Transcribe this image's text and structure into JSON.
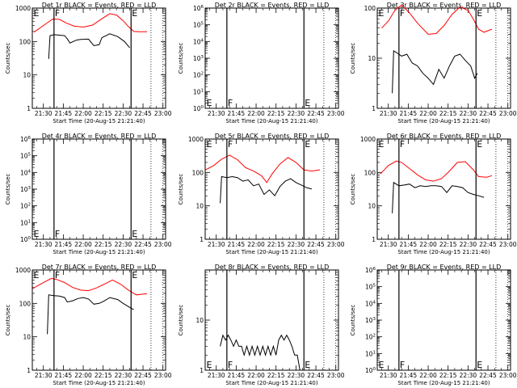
{
  "figure": {
    "background": "#ffffff",
    "events_color": "#000000",
    "lld_color": "#ff0000",
    "x_tick_labels": [
      "21:30",
      "21:45",
      "22:00",
      "22:15",
      "22:30",
      "22:45",
      "23:00"
    ],
    "x_label": "Start Time (20-Aug-15 21:21:40)",
    "y_label": "Counts/sec",
    "start_time": "21:21:40"
  },
  "chart_data": [
    {
      "type": "line",
      "title": "Det 1r BLACK = Events, RED = LLD",
      "xlim": [
        "21:21:40",
        "23:02:00"
      ],
      "ylim": [
        1,
        1000
      ],
      "yscale": "log",
      "y_ticks": [
        "1",
        "10",
        "100",
        "1000"
      ],
      "markers": [
        {
          "label": "E",
          "t": "21:22"
        },
        {
          "label": "F",
          "t": "21:38"
        },
        {
          "label": "E",
          "t": "22:36"
        }
      ],
      "dotted_lines": [
        "22:51",
        "23:00"
      ],
      "series": [
        {
          "name": "LLD",
          "color": "#ff0000",
          "x": [
            "21:23",
            "21:30",
            "21:37",
            "21:42",
            "21:47",
            "21:53",
            "22:00",
            "22:07",
            "22:14",
            "22:20",
            "22:25",
            "22:30",
            "22:34",
            "22:38",
            "22:42",
            "22:48"
          ],
          "values": [
            190,
            300,
            470,
            460,
            360,
            290,
            270,
            310,
            480,
            680,
            620,
            420,
            280,
            200,
            195,
            195
          ]
        },
        {
          "name": "Events",
          "color": "#000000",
          "x": [
            "21:34",
            "21:35",
            "21:38",
            "21:42",
            "21:46",
            "21:48",
            "21:50",
            "21:55",
            "21:58",
            "22:04",
            "22:08",
            "22:12",
            "22:14",
            "22:20",
            "22:26",
            "22:31",
            "22:35"
          ],
          "values": [
            30,
            150,
            160,
            155,
            150,
            120,
            90,
            110,
            115,
            118,
            75,
            80,
            130,
            170,
            140,
            100,
            65
          ]
        }
      ]
    },
    {
      "type": "line",
      "title": "Det 2r BLACK = Events, RED = LLD",
      "xlim": [
        "21:21:40",
        "23:02:00"
      ],
      "ylim": [
        1,
        1000000
      ],
      "yscale": "log",
      "y_ticks": [
        "10^0",
        "10^1",
        "10^2",
        "10^3",
        "10^4",
        "10^5",
        "10^6"
      ],
      "markers": [
        {
          "label": "E",
          "t": "21:22"
        },
        {
          "label": "F",
          "t": "21:38"
        },
        {
          "label": "E",
          "t": "22:36"
        }
      ],
      "dotted_lines": [
        "22:51",
        "23:00"
      ],
      "series": []
    },
    {
      "type": "line",
      "title": "Det 3r BLACK = Events, RED = LLD",
      "xlim": [
        "21:21:40",
        "23:02:00"
      ],
      "ylim": [
        1,
        100
      ],
      "yscale": "log",
      "y_ticks": [
        "1",
        "10",
        "100"
      ],
      "markers": [
        {
          "label": "E",
          "t": "21:22"
        },
        {
          "label": "F",
          "t": "21:38"
        },
        {
          "label": "E",
          "t": "22:36"
        }
      ],
      "dotted_lines": [
        "22:51",
        "23:00"
      ],
      "series": [
        {
          "name": "LLD",
          "color": "#ff0000",
          "x": [
            "21:25",
            "21:30",
            "21:35",
            "21:40",
            "21:46",
            "21:52",
            "22:00",
            "22:06",
            "22:12",
            "22:18",
            "22:24",
            "22:30",
            "22:34",
            "22:38",
            "22:42",
            "22:48"
          ],
          "values": [
            40,
            55,
            90,
            115,
            80,
            50,
            30,
            31,
            45,
            75,
            105,
            90,
            60,
            38,
            33,
            38
          ]
        },
        {
          "name": "Events",
          "color": "#000000",
          "x": [
            "21:33",
            "21:34",
            "21:36",
            "21:40",
            "21:44",
            "21:48",
            "21:52",
            "21:56",
            "22:00",
            "22:04",
            "22:08",
            "22:12",
            "22:16",
            "22:20",
            "22:24",
            "22:28",
            "22:32",
            "22:35",
            "22:37"
          ],
          "values": [
            2,
            14,
            13,
            11,
            12,
            8,
            7,
            5,
            4,
            3,
            6,
            4,
            7,
            11,
            12,
            9,
            7,
            4,
            5
          ]
        }
      ]
    },
    {
      "type": "line",
      "title": "Det 4r BLACK = Events, RED = LLD",
      "xlim": [
        "21:21:40",
        "23:02:00"
      ],
      "ylim": [
        1,
        1000000
      ],
      "yscale": "log",
      "y_ticks": [
        "10^0",
        "10^1",
        "10^2",
        "10^3",
        "10^4",
        "10^5",
        "10^6"
      ],
      "markers": [
        {
          "label": "E",
          "t": "21:22"
        },
        {
          "label": "F",
          "t": "21:38"
        },
        {
          "label": "E",
          "t": "22:36"
        }
      ],
      "dotted_lines": [
        "22:51",
        "23:00"
      ],
      "series": []
    },
    {
      "type": "line",
      "title": "Det 5r BLACK = Events, RED = LLD",
      "xlim": [
        "21:21:40",
        "23:02:00"
      ],
      "ylim": [
        1,
        1000
      ],
      "yscale": "log",
      "y_ticks": [
        "1",
        "10",
        "100",
        "1000"
      ],
      "markers": [
        {
          "label": "E",
          "t": "21:22"
        },
        {
          "label": "F",
          "t": "21:38"
        },
        {
          "label": "E",
          "t": "22:36"
        }
      ],
      "dotted_lines": [
        "22:51",
        "23:00"
      ],
      "series": [
        {
          "name": "LLD",
          "color": "#ff0000",
          "x": [
            "21:22",
            "21:28",
            "21:34",
            "21:40",
            "21:46",
            "21:52",
            "21:58",
            "22:04",
            "22:08",
            "22:12",
            "22:18",
            "22:24",
            "22:30",
            "22:36",
            "22:42",
            "22:48"
          ],
          "values": [
            120,
            160,
            250,
            330,
            240,
            140,
            110,
            80,
            50,
            90,
            180,
            280,
            200,
            120,
            110,
            120
          ]
        },
        {
          "name": "Events",
          "color": "#000000",
          "x": [
            "21:33",
            "21:34",
            "21:38",
            "21:42",
            "21:46",
            "21:50",
            "21:54",
            "21:58",
            "22:02",
            "22:06",
            "22:10",
            "22:14",
            "22:18",
            "22:22",
            "22:26",
            "22:30",
            "22:34",
            "22:38",
            "22:42"
          ],
          "values": [
            12,
            75,
            70,
            75,
            70,
            55,
            60,
            40,
            45,
            22,
            30,
            20,
            38,
            55,
            65,
            50,
            42,
            35,
            32
          ]
        }
      ]
    },
    {
      "type": "line",
      "title": "Det 6r BLACK = Events, RED = LLD",
      "xlim": [
        "21:21:40",
        "23:02:00"
      ],
      "ylim": [
        1,
        1000
      ],
      "yscale": "log",
      "y_ticks": [
        "1",
        "10",
        "100",
        "1000"
      ],
      "markers": [
        {
          "label": "E",
          "t": "21:22"
        },
        {
          "label": "F",
          "t": "21:38"
        },
        {
          "label": "E",
          "t": "22:36"
        }
      ],
      "dotted_lines": [
        "22:51",
        "23:00"
      ],
      "series": [
        {
          "name": "LLD",
          "color": "#ff0000",
          "x": [
            "21:24",
            "21:30",
            "21:36",
            "21:40",
            "21:46",
            "21:52",
            "21:58",
            "22:04",
            "22:10",
            "22:16",
            "22:22",
            "22:28",
            "22:34",
            "22:38",
            "22:44",
            "22:48"
          ],
          "values": [
            90,
            160,
            220,
            200,
            130,
            85,
            60,
            55,
            65,
            110,
            200,
            210,
            120,
            75,
            72,
            80
          ]
        },
        {
          "name": "Events",
          "color": "#000000",
          "x": [
            "21:33",
            "21:34",
            "21:38",
            "21:42",
            "21:46",
            "21:50",
            "21:54",
            "21:58",
            "22:02",
            "22:06",
            "22:10",
            "22:14",
            "22:18",
            "22:22",
            "22:26",
            "22:30",
            "22:34",
            "22:38",
            "22:42"
          ],
          "values": [
            6,
            50,
            40,
            42,
            45,
            35,
            40,
            38,
            40,
            40,
            38,
            25,
            40,
            38,
            35,
            25,
            22,
            20,
            18
          ]
        }
      ]
    },
    {
      "type": "line",
      "title": "Det 7r BLACK = Events, RED = LLD",
      "xlim": [
        "21:21:40",
        "23:02:00"
      ],
      "ylim": [
        1,
        1000
      ],
      "yscale": "log",
      "y_ticks": [
        "1",
        "10",
        "100",
        "1000"
      ],
      "markers": [
        {
          "label": "E",
          "t": "21:22"
        },
        {
          "label": "F",
          "t": "21:38"
        },
        {
          "label": "E",
          "t": "22:36"
        }
      ],
      "dotted_lines": [
        "22:51",
        "23:00"
      ],
      "series": [
        {
          "name": "LLD",
          "color": "#ff0000",
          "x": [
            "21:22",
            "21:30",
            "21:36",
            "21:40",
            "21:46",
            "21:52",
            "21:58",
            "22:04",
            "22:10",
            "22:16",
            "22:22",
            "22:28",
            "22:34",
            "22:40",
            "22:48"
          ],
          "values": [
            280,
            420,
            560,
            520,
            420,
            300,
            250,
            240,
            290,
            380,
            500,
            380,
            250,
            180,
            195
          ]
        },
        {
          "name": "Events",
          "color": "#000000",
          "x": [
            "21:33",
            "21:34",
            "21:38",
            "21:42",
            "21:46",
            "21:48",
            "21:52",
            "21:56",
            "22:00",
            "22:04",
            "22:08",
            "22:12",
            "22:16",
            "22:20",
            "22:26",
            "22:30",
            "22:34",
            "22:38"
          ],
          "values": [
            12,
            180,
            170,
            165,
            150,
            110,
            120,
            140,
            150,
            135,
            95,
            100,
            120,
            150,
            130,
            100,
            80,
            65
          ]
        }
      ]
    },
    {
      "type": "line",
      "title": "Det 8r BLACK = Events, RED = LLD",
      "xlim": [
        "21:21:40",
        "23:02:00"
      ],
      "ylim": [
        1,
        100
      ],
      "yscale": "log",
      "y_ticks": [
        "1",
        "10"
      ],
      "markers": [
        {
          "label": "E",
          "t": "21:22"
        },
        {
          "label": "F",
          "t": "21:38"
        },
        {
          "label": "E",
          "t": "22:36"
        }
      ],
      "dotted_lines": [
        "22:51",
        "23:00"
      ],
      "series": [
        {
          "name": "Events",
          "color": "#000000",
          "x": [
            "21:33",
            "21:35",
            "21:37",
            "21:39",
            "21:41",
            "21:43",
            "21:45",
            "21:47",
            "21:49",
            "21:51",
            "21:53",
            "21:55",
            "21:57",
            "21:59",
            "22:01",
            "22:03",
            "22:05",
            "22:07",
            "22:09",
            "22:11",
            "22:13",
            "22:15",
            "22:17",
            "22:19",
            "22:21",
            "22:23",
            "22:25",
            "22:27",
            "22:29",
            "22:31",
            "22:33",
            "22:35"
          ],
          "values": [
            3,
            5,
            4,
            5,
            4,
            3,
            4,
            3,
            3,
            2,
            3,
            2,
            3,
            2,
            3,
            2,
            3,
            2,
            3,
            2,
            3,
            2,
            4,
            5,
            4,
            5,
            4,
            3,
            2,
            2,
            1,
            1
          ]
        }
      ]
    },
    {
      "type": "line",
      "title": "Det 9r BLACK = Events, RED = LLD",
      "xlim": [
        "21:21:40",
        "23:02:00"
      ],
      "ylim": [
        1,
        1000000
      ],
      "yscale": "log",
      "y_ticks": [
        "10^0",
        "10^1",
        "10^2",
        "10^3",
        "10^4",
        "10^5",
        "10^6"
      ],
      "markers": [
        {
          "label": "E",
          "t": "21:22"
        },
        {
          "label": "F",
          "t": "21:38"
        },
        {
          "label": "E",
          "t": "22:36"
        }
      ],
      "dotted_lines": [
        "22:51",
        "23:00"
      ],
      "series": []
    }
  ]
}
